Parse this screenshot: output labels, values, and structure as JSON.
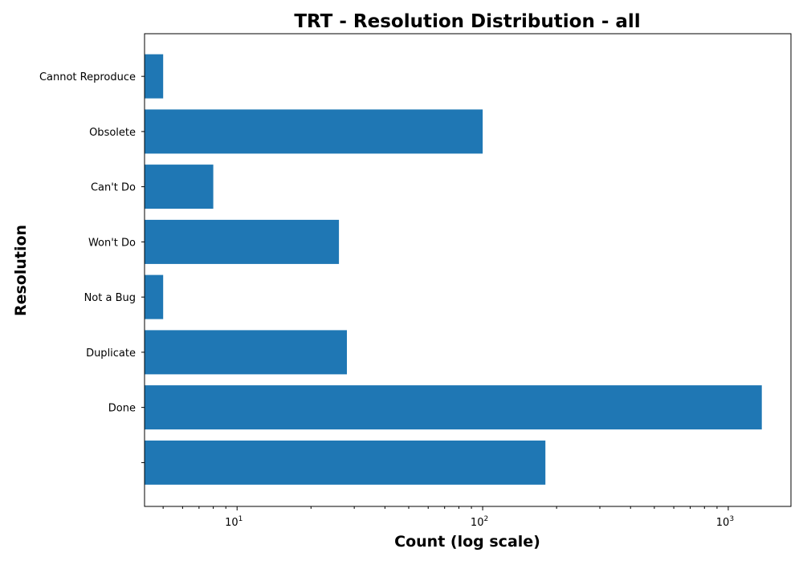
{
  "chart_data": {
    "type": "bar",
    "orientation": "horizontal",
    "title": "TRT - Resolution Distribution - all",
    "xlabel": "Count (log scale)",
    "ylabel": "Resolution",
    "xscale": "log",
    "xlim": [
      4.2,
      1800
    ],
    "x_ticks": [
      {
        "value": 10,
        "base": "10",
        "exp": "1"
      },
      {
        "value": 100,
        "base": "10",
        "exp": "2"
      },
      {
        "value": 1000,
        "base": "10",
        "exp": "3"
      }
    ],
    "categories": [
      "",
      "Done",
      "Duplicate",
      "Not a Bug",
      "Won't Do",
      "Can't Do",
      "Obsolete",
      "Cannot Reproduce"
    ],
    "values": [
      180,
      1370,
      28,
      5,
      26,
      8,
      100,
      5
    ],
    "bar_color": "#1f77b4",
    "grid": false,
    "legend": "none"
  }
}
